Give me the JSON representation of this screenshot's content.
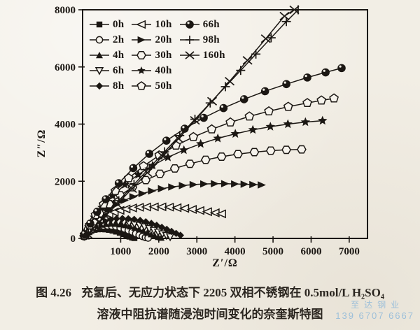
{
  "colors": {
    "ink": "#1b1713",
    "paper": "#f6f3ec",
    "watermark": "#8fb9da"
  },
  "figure": {
    "caption_prefix": "图 4.26",
    "caption_line1": "充氢后、无应力状态下 2205 双相不锈钢在 0.5mol/L H₂SO₄",
    "caption_line2": "溶液中阻抗谱随浸泡时间变化的奈奎斯特图"
  },
  "watermark": {
    "line1": "至达钢业",
    "line2": "139 6707 6667"
  },
  "chart_data": {
    "type": "scatter",
    "title": "",
    "xlabel": "Z′/Ω",
    "ylabel": "Z″/Ω",
    "xlim": [
      0,
      7480
    ],
    "ylim": [
      0,
      8000
    ],
    "x_ticks": [
      1000,
      2000,
      3000,
      4000,
      5000,
      6000,
      7000
    ],
    "y_ticks": [
      0,
      2000,
      4000,
      6000,
      8000
    ],
    "grid": false,
    "legend_position": "top-left-inside",
    "legend_columns": 3,
    "series": [
      {
        "name": "0h",
        "marker": "square",
        "filled": true,
        "msize": 4.2,
        "points": [
          [
            35,
            55
          ],
          [
            90,
            140
          ],
          [
            155,
            215
          ],
          [
            230,
            268
          ],
          [
            315,
            300
          ],
          [
            405,
            318
          ],
          [
            500,
            322
          ],
          [
            595,
            315
          ],
          [
            690,
            298
          ],
          [
            785,
            272
          ],
          [
            880,
            238
          ],
          [
            975,
            197
          ],
          [
            1065,
            150
          ],
          [
            1150,
            105
          ],
          [
            1230,
            62
          ],
          [
            1300,
            30
          ],
          [
            1360,
            10
          ]
        ]
      },
      {
        "name": "2h",
        "marker": "circle",
        "filled": false,
        "msize": 4.6,
        "points": [
          [
            40,
            60
          ],
          [
            100,
            160
          ],
          [
            170,
            255
          ],
          [
            250,
            330
          ],
          [
            340,
            385
          ],
          [
            440,
            420
          ],
          [
            545,
            438
          ],
          [
            655,
            440
          ],
          [
            765,
            430
          ],
          [
            875,
            408
          ],
          [
            985,
            375
          ],
          [
            1095,
            332
          ],
          [
            1200,
            282
          ],
          [
            1300,
            228
          ],
          [
            1395,
            172
          ],
          [
            1485,
            118
          ],
          [
            1570,
            70
          ],
          [
            1650,
            35
          ],
          [
            1720,
            15
          ]
        ]
      },
      {
        "name": "4h",
        "marker": "triangle-up",
        "filled": true,
        "msize": 5,
        "points": [
          [
            45,
            65
          ],
          [
            110,
            175
          ],
          [
            190,
            280
          ],
          [
            285,
            365
          ],
          [
            390,
            430
          ],
          [
            505,
            475
          ],
          [
            625,
            502
          ],
          [
            750,
            512
          ],
          [
            875,
            508
          ],
          [
            1000,
            490
          ],
          [
            1125,
            460
          ],
          [
            1250,
            420
          ],
          [
            1370,
            372
          ],
          [
            1485,
            318
          ],
          [
            1595,
            260
          ],
          [
            1700,
            200
          ],
          [
            1800,
            142
          ],
          [
            1895,
            90
          ],
          [
            1985,
            48
          ],
          [
            2060,
            20
          ]
        ]
      },
      {
        "name": "6h",
        "marker": "triangle-down",
        "filled": false,
        "msize": 5,
        "points": [
          [
            50,
            70
          ],
          [
            120,
            190
          ],
          [
            205,
            305
          ],
          [
            305,
            400
          ],
          [
            415,
            475
          ],
          [
            535,
            530
          ],
          [
            665,
            565
          ],
          [
            800,
            582
          ],
          [
            940,
            583
          ],
          [
            1080,
            570
          ],
          [
            1220,
            545
          ],
          [
            1360,
            508
          ],
          [
            1495,
            462
          ],
          [
            1625,
            408
          ],
          [
            1750,
            348
          ],
          [
            1870,
            285
          ],
          [
            1985,
            222
          ],
          [
            2095,
            160
          ],
          [
            2200,
            103
          ],
          [
            2300,
            55
          ]
        ]
      },
      {
        "name": "8h",
        "marker": "diamond",
        "filled": true,
        "msize": 5.2,
        "points": [
          [
            55,
            80
          ],
          [
            135,
            215
          ],
          [
            230,
            345
          ],
          [
            340,
            455
          ],
          [
            460,
            545
          ],
          [
            595,
            615
          ],
          [
            740,
            662
          ],
          [
            890,
            690
          ],
          [
            1045,
            698
          ],
          [
            1200,
            690
          ],
          [
            1355,
            667
          ],
          [
            1510,
            630
          ],
          [
            1660,
            582
          ],
          [
            1805,
            525
          ],
          [
            1945,
            460
          ],
          [
            2080,
            390
          ],
          [
            2210,
            318
          ],
          [
            2335,
            245
          ],
          [
            2455,
            175
          ],
          [
            2570,
            110
          ]
        ]
      },
      {
        "name": "10h",
        "marker": "triangle-left",
        "filled": false,
        "msize": 6.2,
        "points": [
          [
            60,
            110
          ],
          [
            140,
            270
          ],
          [
            230,
            420
          ],
          [
            330,
            550
          ],
          [
            440,
            665
          ],
          [
            560,
            765
          ],
          [
            690,
            850
          ],
          [
            830,
            920
          ],
          [
            980,
            980
          ],
          [
            1140,
            1030
          ],
          [
            1310,
            1065
          ],
          [
            1490,
            1090
          ],
          [
            1680,
            1100
          ],
          [
            1880,
            1105
          ],
          [
            2080,
            1105
          ],
          [
            2280,
            1095
          ],
          [
            2480,
            1075
          ],
          [
            2680,
            1050
          ],
          [
            2880,
            1015
          ],
          [
            3080,
            975
          ],
          [
            3280,
            935
          ],
          [
            3480,
            895
          ],
          [
            3650,
            860
          ]
        ]
      },
      {
        "name": "20h",
        "marker": "triangle-right",
        "filled": true,
        "msize": 6.2,
        "points": [
          [
            80,
            160
          ],
          [
            200,
            390
          ],
          [
            340,
            610
          ],
          [
            500,
            820
          ],
          [
            680,
            1010
          ],
          [
            880,
            1180
          ],
          [
            1100,
            1330
          ],
          [
            1330,
            1460
          ],
          [
            1570,
            1570
          ],
          [
            1820,
            1660
          ],
          [
            2080,
            1740
          ],
          [
            2350,
            1800
          ],
          [
            2630,
            1850
          ],
          [
            2910,
            1885
          ],
          [
            3190,
            1905
          ],
          [
            3470,
            1915
          ],
          [
            3740,
            1915
          ],
          [
            4000,
            1905
          ],
          [
            4250,
            1895
          ],
          [
            4480,
            1885
          ],
          [
            4700,
            1870
          ]
        ]
      },
      {
        "name": "30h",
        "marker": "hexagon",
        "filled": false,
        "msize": 6,
        "points": [
          [
            40,
            90
          ],
          [
            150,
            330
          ],
          [
            290,
            600
          ],
          [
            450,
            870
          ],
          [
            700,
            1200
          ],
          [
            990,
            1510
          ],
          [
            1310,
            1790
          ],
          [
            1660,
            2040
          ],
          [
            2030,
            2260
          ],
          [
            2420,
            2450
          ],
          [
            2820,
            2610
          ],
          [
            3230,
            2750
          ],
          [
            3650,
            2860
          ],
          [
            4080,
            2950
          ],
          [
            4510,
            3020
          ],
          [
            4940,
            3070
          ],
          [
            5350,
            3100
          ],
          [
            5750,
            3115
          ]
        ]
      },
      {
        "name": "40h",
        "marker": "star",
        "filled": true,
        "msize": 7,
        "points": [
          [
            45,
            110
          ],
          [
            160,
            400
          ],
          [
            310,
            740
          ],
          [
            510,
            1080
          ],
          [
            790,
            1490
          ],
          [
            1110,
            1880
          ],
          [
            1460,
            2230
          ],
          [
            1840,
            2550
          ],
          [
            2240,
            2840
          ],
          [
            2660,
            3090
          ],
          [
            3100,
            3310
          ],
          [
            3550,
            3500
          ],
          [
            4010,
            3660
          ],
          [
            4470,
            3800
          ],
          [
            4930,
            3910
          ],
          [
            5390,
            4000
          ],
          [
            5850,
            4070
          ],
          [
            6300,
            4120
          ]
        ]
      },
      {
        "name": "50h",
        "marker": "pentagon",
        "filled": false,
        "msize": 6.3,
        "points": [
          [
            50,
            130
          ],
          [
            180,
            460
          ],
          [
            340,
            820
          ],
          [
            550,
            1190
          ],
          [
            860,
            1660
          ],
          [
            1210,
            2110
          ],
          [
            1600,
            2530
          ],
          [
            2010,
            2910
          ],
          [
            2450,
            3250
          ],
          [
            2910,
            3550
          ],
          [
            3390,
            3820
          ],
          [
            3880,
            4060
          ],
          [
            4380,
            4270
          ],
          [
            4890,
            4450
          ],
          [
            5400,
            4610
          ],
          [
            5900,
            4740
          ],
          [
            6270,
            4830
          ],
          [
            6600,
            4900
          ]
        ]
      },
      {
        "name": "66h",
        "marker": "ball",
        "filled": true,
        "msize": 5.8,
        "points": [
          [
            55,
            150
          ],
          [
            200,
            520
          ],
          [
            380,
            930
          ],
          [
            610,
            1370
          ],
          [
            950,
            1930
          ],
          [
            1330,
            2460
          ],
          [
            1750,
            2960
          ],
          [
            2200,
            3420
          ],
          [
            2680,
            3840
          ],
          [
            3180,
            4220
          ],
          [
            3700,
            4560
          ],
          [
            4240,
            4870
          ],
          [
            4790,
            5150
          ],
          [
            5350,
            5400
          ],
          [
            5900,
            5630
          ],
          [
            6380,
            5810
          ],
          [
            6800,
            5960
          ]
        ]
      },
      {
        "name": "98h",
        "marker": "plus",
        "filled": false,
        "msize": 6.5,
        "points": [
          [
            150,
            180
          ],
          [
            550,
            750
          ],
          [
            950,
            1320
          ],
          [
            1350,
            1890
          ],
          [
            1750,
            2460
          ],
          [
            2150,
            3030
          ],
          [
            2550,
            3600
          ],
          [
            2950,
            4170
          ],
          [
            3350,
            4740
          ],
          [
            3750,
            5310
          ],
          [
            4150,
            5880
          ],
          [
            4550,
            6450
          ],
          [
            4950,
            7020
          ],
          [
            5350,
            7590
          ],
          [
            5660,
            8000
          ]
        ]
      },
      {
        "name": "160h",
        "marker": "x",
        "filled": false,
        "msize": 6.5,
        "points": [
          [
            130,
            150
          ],
          [
            520,
            670
          ],
          [
            910,
            1200
          ],
          [
            1300,
            1740
          ],
          [
            1700,
            2300
          ],
          [
            2100,
            2880
          ],
          [
            2520,
            3490
          ],
          [
            2950,
            4130
          ],
          [
            3400,
            4800
          ],
          [
            3860,
            5500
          ],
          [
            4330,
            6230
          ],
          [
            4810,
            6990
          ],
          [
            5300,
            7780
          ],
          [
            5560,
            8000
          ]
        ]
      }
    ]
  }
}
